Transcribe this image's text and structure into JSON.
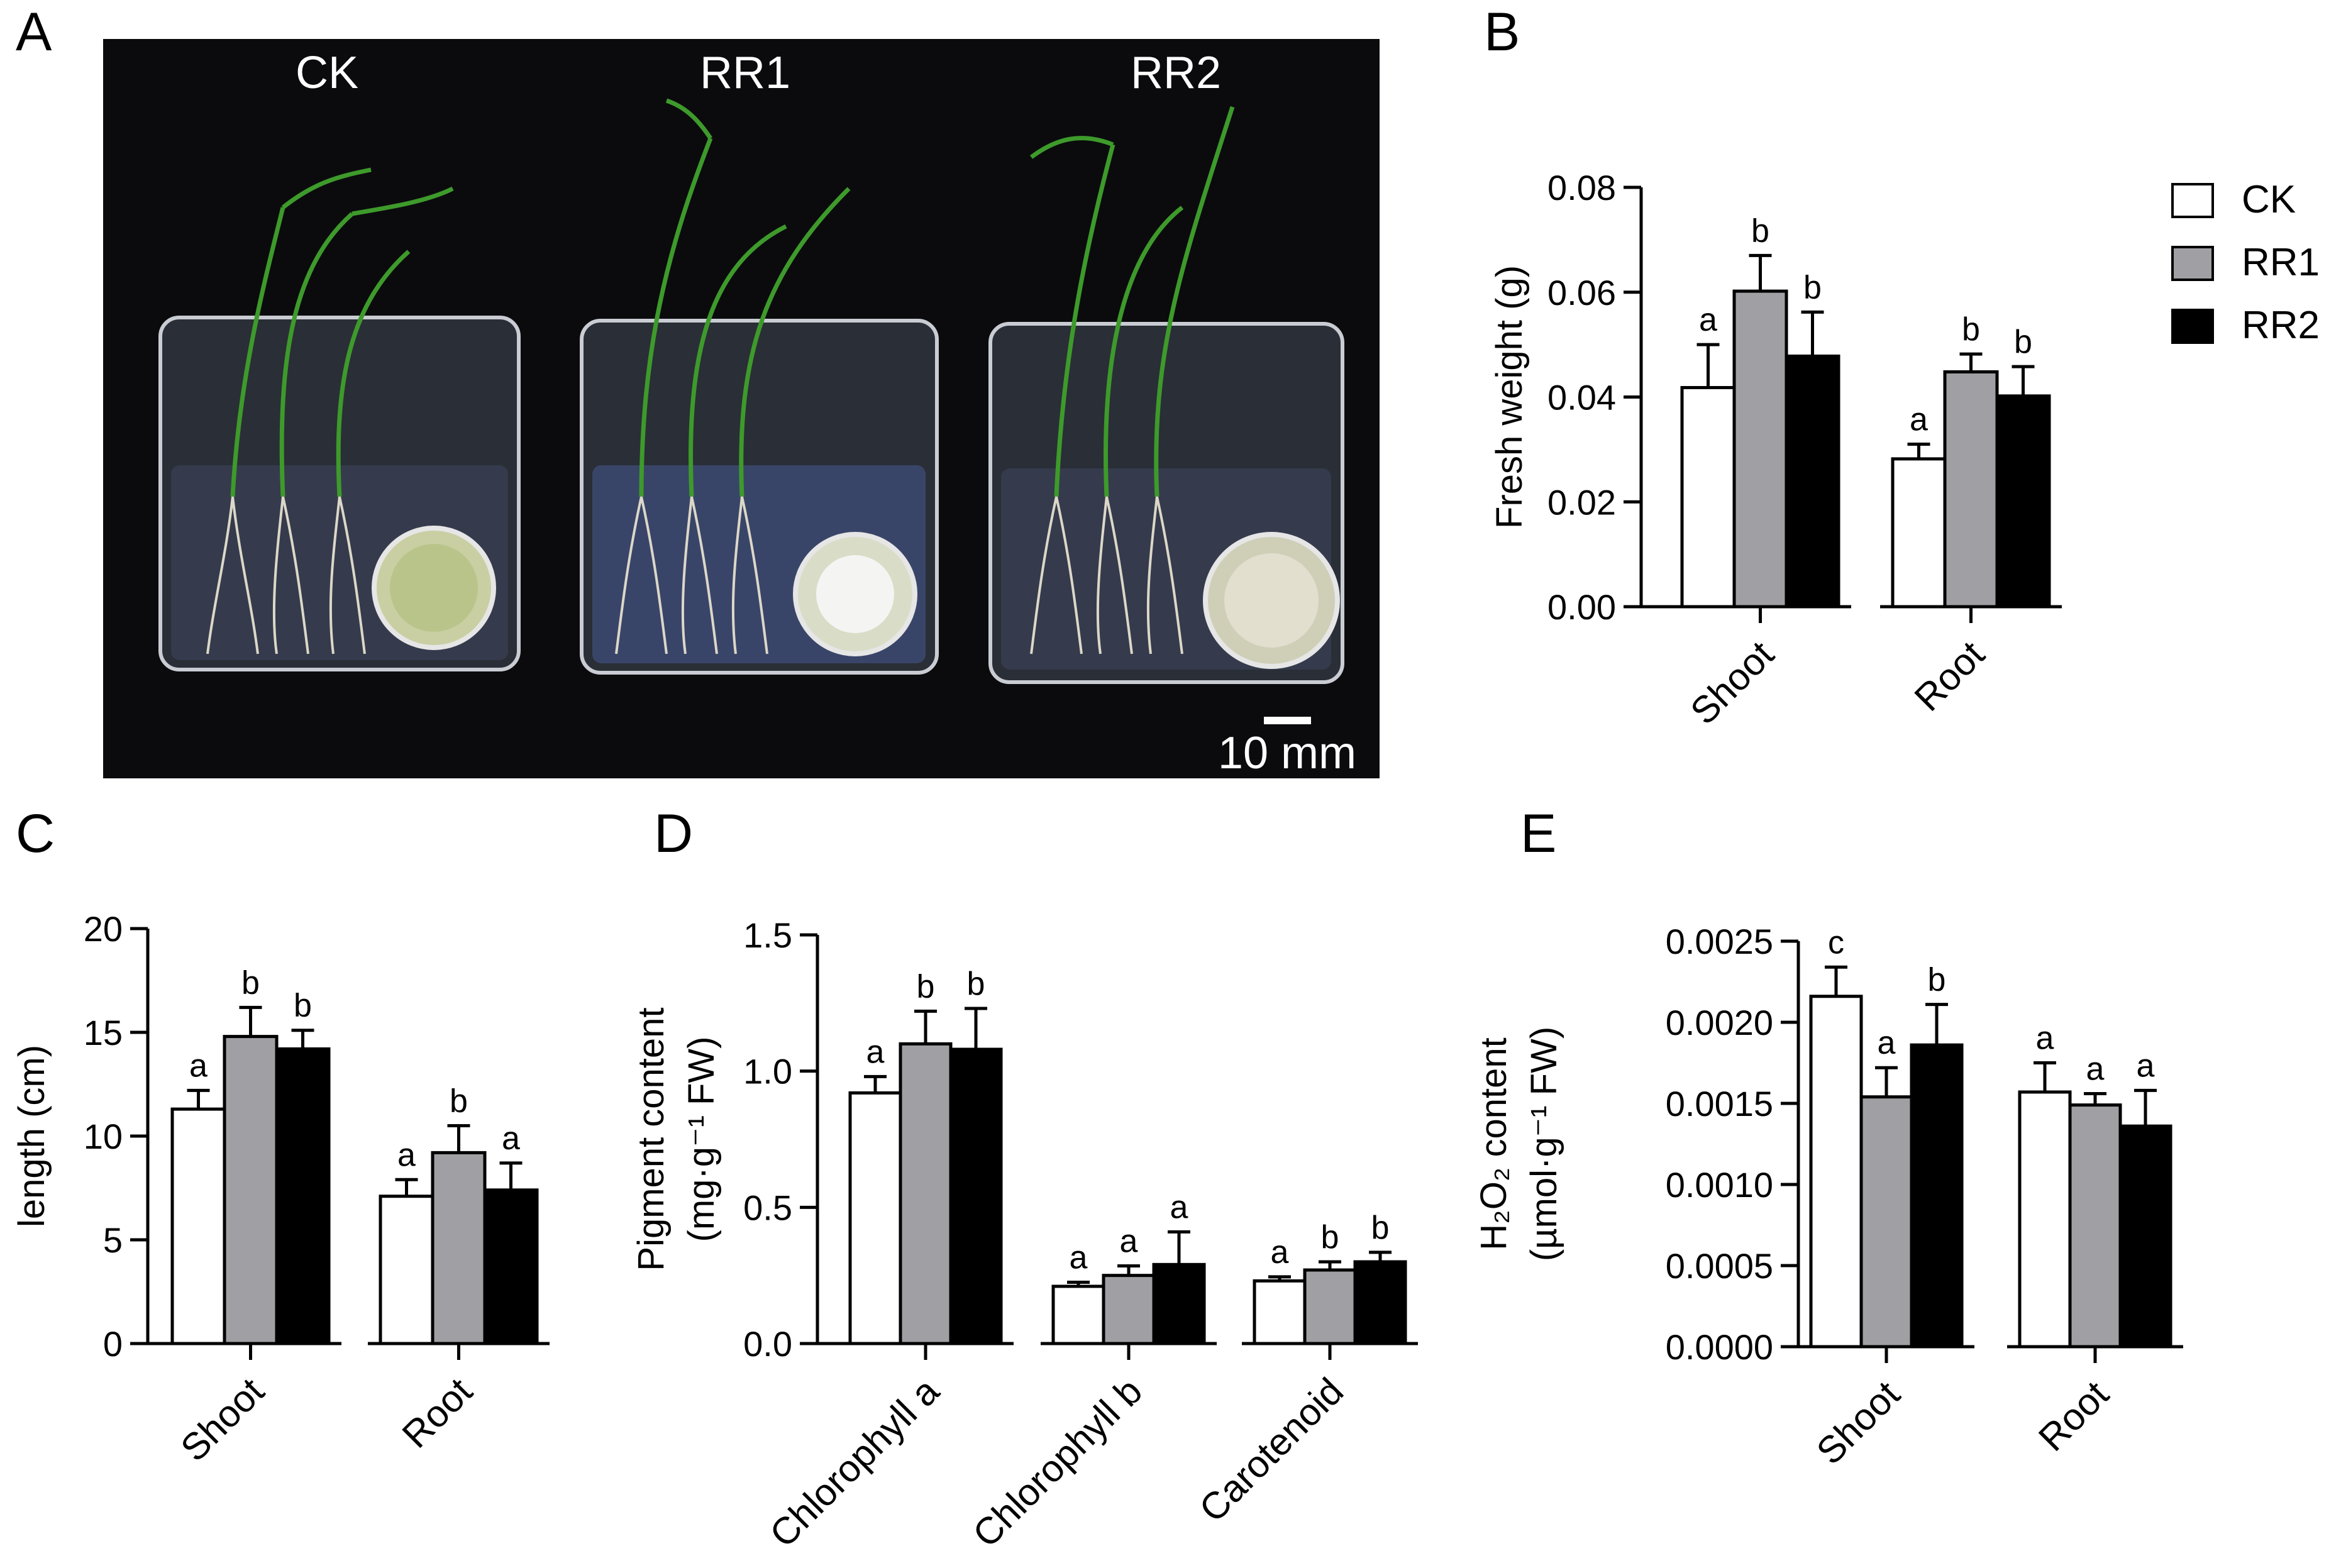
{
  "panels": {
    "A": {
      "letter": "A",
      "group_labels": [
        "CK",
        "RR1",
        "RR2"
      ],
      "scale_bar_label": "10 mm"
    }
  },
  "legend": {
    "entries": [
      {
        "name": "CK",
        "color": "#ffffff"
      },
      {
        "name": "RR1",
        "color": "#a0a0a4"
      },
      {
        "name": "RR2",
        "color": "#000000"
      }
    ]
  },
  "chart_data": [
    {
      "id": "B",
      "letter": "B",
      "type": "bar",
      "title": "",
      "ylabel": "Fresh weight (g)",
      "xlabel": "",
      "ylim": [
        0,
        0.08
      ],
      "yticks": [
        "0.00",
        "0.02",
        "0.04",
        "0.06",
        "0.08"
      ],
      "categories": [
        "Shoot",
        "Root"
      ],
      "series": [
        {
          "name": "CK",
          "values": [
            0.0418,
            0.0282
          ],
          "errors": [
            0.0082,
            0.0028
          ],
          "letters": [
            "a",
            "a"
          ]
        },
        {
          "name": "RR1",
          "values": [
            0.0602,
            0.0448
          ],
          "errors": [
            0.0068,
            0.0034
          ],
          "letters": [
            "b",
            "b"
          ]
        },
        {
          "name": "RR2",
          "values": [
            0.0478,
            0.0402
          ],
          "errors": [
            0.0084,
            0.0056
          ],
          "letters": [
            "b",
            "b"
          ]
        }
      ],
      "grid": false,
      "legend": "right"
    },
    {
      "id": "C",
      "letter": "C",
      "type": "bar",
      "title": "",
      "ylabel": "length (cm)",
      "xlabel": "",
      "ylim": [
        0,
        20
      ],
      "yticks": [
        "0",
        "5",
        "10",
        "15",
        "20"
      ],
      "categories": [
        "Shoot",
        "Root"
      ],
      "series": [
        {
          "name": "CK",
          "values": [
            11.3,
            7.1
          ],
          "errors": [
            0.9,
            0.8
          ],
          "letters": [
            "a",
            "a"
          ]
        },
        {
          "name": "RR1",
          "values": [
            14.8,
            9.2
          ],
          "errors": [
            1.4,
            1.3
          ],
          "letters": [
            "b",
            "b"
          ]
        },
        {
          "name": "RR2",
          "values": [
            14.2,
            7.4
          ],
          "errors": [
            0.9,
            1.3
          ],
          "letters": [
            "b",
            "a"
          ]
        }
      ],
      "grid": false
    },
    {
      "id": "D",
      "letter": "D",
      "type": "bar",
      "title": "",
      "ylabel": "Pigment content",
      "ylabel2": "(mg·g⁻¹ FW)",
      "xlabel": "",
      "ylim": [
        0,
        1.5
      ],
      "yticks": [
        "0.0",
        "0.5",
        "1.0",
        "1.5"
      ],
      "categories": [
        "Chlorophyll a",
        "Chlorophyll b",
        "Carotenoid"
      ],
      "series": [
        {
          "name": "CK",
          "values": [
            0.92,
            0.21,
            0.23
          ],
          "errors": [
            0.06,
            0.015,
            0.015
          ],
          "letters": [
            "a",
            "a",
            "a"
          ]
        },
        {
          "name": "RR1",
          "values": [
            1.1,
            0.25,
            0.27
          ],
          "errors": [
            0.12,
            0.035,
            0.03
          ],
          "letters": [
            "b",
            "a",
            "b"
          ]
        },
        {
          "name": "RR2",
          "values": [
            1.08,
            0.29,
            0.3
          ],
          "errors": [
            0.15,
            0.12,
            0.035
          ],
          "letters": [
            "b",
            "a",
            "b"
          ]
        }
      ],
      "grid": false
    },
    {
      "id": "E",
      "letter": "E",
      "type": "bar",
      "title": "",
      "ylabel": "H₂O₂ content",
      "ylabel2": "(µmol·g⁻¹ FW)",
      "xlabel": "",
      "ylim": [
        0,
        0.0025
      ],
      "yticks": [
        "0.0000",
        "0.0005",
        "0.0010",
        "0.0015",
        "0.0020",
        "0.0025"
      ],
      "categories": [
        "Shoot",
        "Root"
      ],
      "series": [
        {
          "name": "CK",
          "values": [
            0.00216,
            0.00157
          ],
          "errors": [
            0.00018,
            0.00018
          ],
          "letters": [
            "c",
            "a"
          ]
        },
        {
          "name": "RR1",
          "values": [
            0.00154,
            0.00149
          ],
          "errors": [
            0.00018,
            7e-05
          ],
          "letters": [
            "a",
            "a"
          ]
        },
        {
          "name": "RR2",
          "values": [
            0.00186,
            0.00136
          ],
          "errors": [
            0.00025,
            0.00022
          ],
          "letters": [
            "b",
            "a"
          ]
        }
      ],
      "grid": false
    }
  ]
}
